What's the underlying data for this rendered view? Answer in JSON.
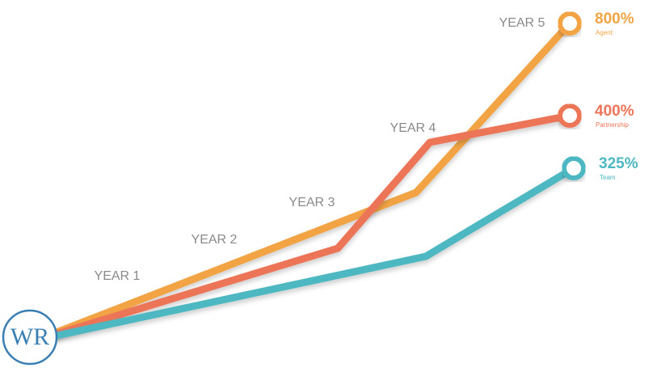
{
  "chart_data": {
    "type": "line",
    "logo": "WR",
    "categories": [
      "YEAR 1",
      "YEAR 2",
      "YEAR 3",
      "YEAR 4",
      "YEAR 5"
    ],
    "series": [
      {
        "name": "Agent",
        "color": "#f2a444",
        "value": 800,
        "value_label": "800%"
      },
      {
        "name": "Partnership",
        "color": "#ec7559",
        "value": 400,
        "value_label": "400%"
      },
      {
        "name": "Team",
        "color": "#4db8c1",
        "value": 325,
        "value_label": "325%"
      }
    ]
  }
}
